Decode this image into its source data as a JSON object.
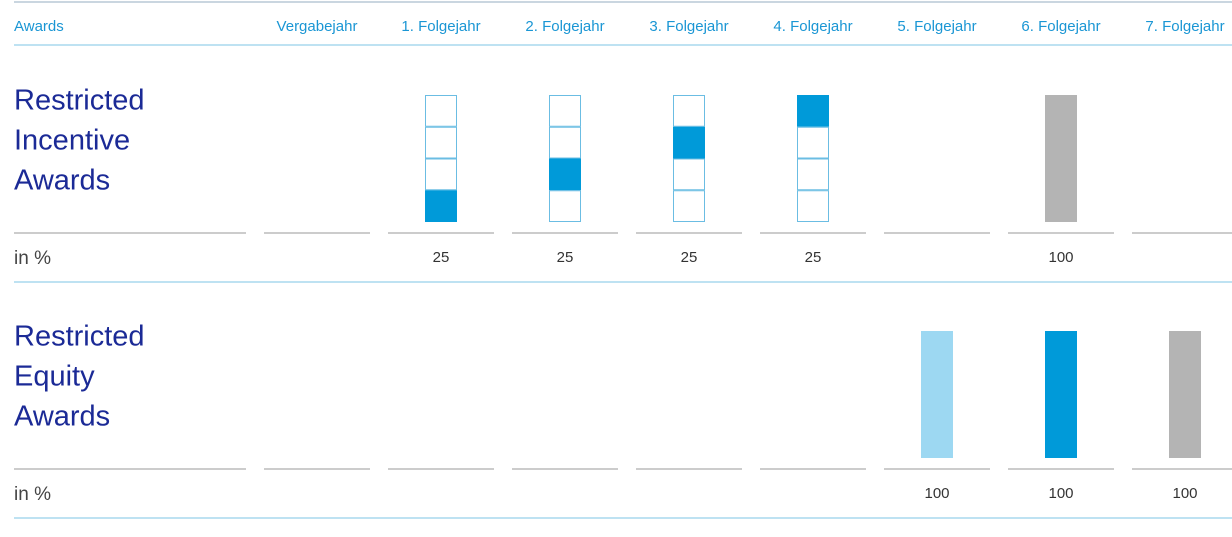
{
  "header": {
    "title": "Awards",
    "columns": [
      "Vergabejahr",
      "1. Folgejahr",
      "2. Folgejahr",
      "3. Folgejahr",
      "4. Folgejahr",
      "5. Folgejahr",
      "6. Folgejahr",
      "7. Folgejahr"
    ]
  },
  "sections": [
    {
      "title_lines": [
        "Restricted",
        "Incentive",
        "Awards"
      ],
      "unit": "in %",
      "values": [
        null,
        25,
        25,
        25,
        25,
        null,
        100,
        null
      ]
    },
    {
      "title_lines": [
        "Restricted",
        "Equity",
        "Awards"
      ],
      "unit": "in %",
      "values": [
        null,
        null,
        null,
        null,
        null,
        100,
        100,
        100
      ]
    }
  ]
}
